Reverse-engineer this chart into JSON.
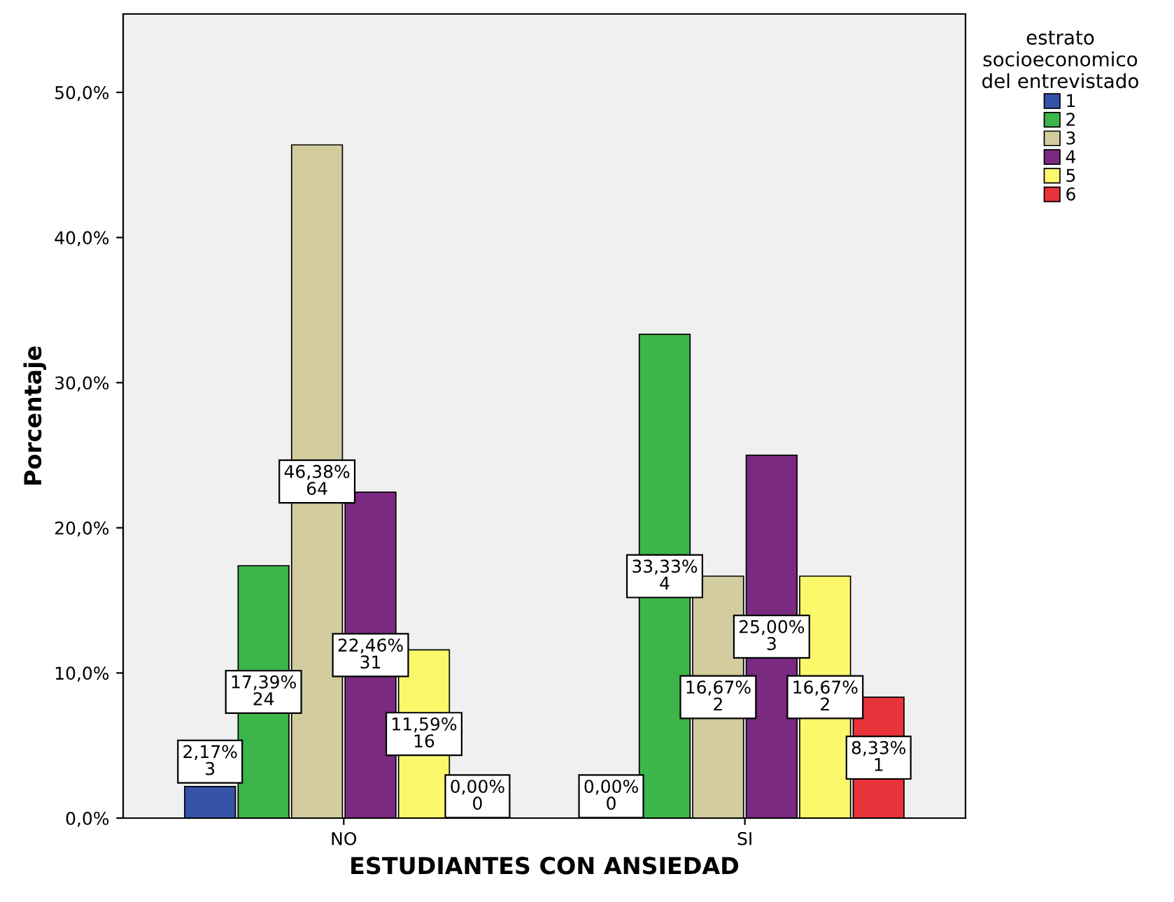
{
  "chart_data": {
    "type": "bar",
    "xlabel": "ESTUDIANTES CON ANSIEDAD",
    "ylabel": "Porcentaje",
    "legend_title": "estrato\nsocioeconomico\ndel entrevistado",
    "categories": [
      "NO",
      "SI"
    ],
    "series": [
      {
        "name": "1",
        "color": "#3553a8",
        "values": [
          2.17,
          0.0
        ],
        "value_labels": [
          "2,17%\n3",
          "0,00%\n0"
        ]
      },
      {
        "name": "2",
        "color": "#3cb54a",
        "values": [
          17.39,
          33.33
        ],
        "value_labels": [
          "17,39%\n24",
          "33,33%\n4"
        ]
      },
      {
        "name": "3",
        "color": "#d3cc9e",
        "values": [
          46.38,
          16.67
        ],
        "value_labels": [
          "46,38%\n64",
          "16,67%\n2"
        ]
      },
      {
        "name": "4",
        "color": "#7a2a80",
        "values": [
          22.46,
          25.0
        ],
        "value_labels": [
          "22,46%\n31",
          "25,00%\n3"
        ]
      },
      {
        "name": "5",
        "color": "#fbf86b",
        "values": [
          11.59,
          16.67
        ],
        "value_labels": [
          "11,59%\n16",
          "16,67%\n2"
        ]
      },
      {
        "name": "6",
        "color": "#e8333a",
        "values": [
          0.0,
          8.33
        ],
        "value_labels": [
          "0,00%\n0",
          "8,33%\n1"
        ]
      }
    ],
    "ylim": [
      0,
      55.4
    ],
    "yticks": [
      {
        "value": 0,
        "label": "0,0%"
      },
      {
        "value": 10,
        "label": "10,0%"
      },
      {
        "value": 20,
        "label": "20,0%"
      },
      {
        "value": 30,
        "label": "30,0%"
      },
      {
        "value": 40,
        "label": "40,0%"
      },
      {
        "value": 50,
        "label": "50,0%"
      }
    ],
    "grid": false,
    "legend": "top right"
  }
}
